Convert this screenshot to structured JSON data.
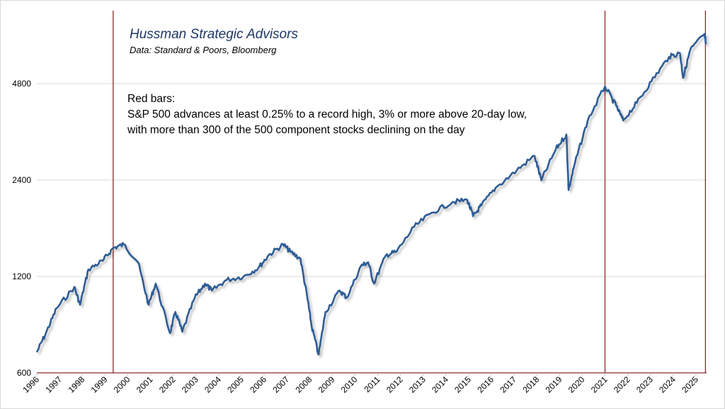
{
  "chart_data": {
    "type": "line",
    "title": "Hussman Strategic Advisors",
    "subtitle": "Data: Standard & Poors, Bloomberg",
    "annotation": [
      "Red bars:",
      "S&P 500 advances at least 0.25% to a record high, 3% or more above 20-day low,",
      "with more than 300 of the 500 component stocks declining on the day"
    ],
    "xlabel": "",
    "ylabel": "",
    "y_scale": "log",
    "ylim": [
      600,
      8100
    ],
    "xlim": [
      1996,
      2025.45
    ],
    "y_ticks": [
      600,
      1200,
      2400,
      4800
    ],
    "x_ticks": [
      "1996",
      "1997",
      "1998",
      "1999",
      "2000",
      "2001",
      "2002",
      "2003",
      "2004",
      "2005",
      "2006",
      "2007",
      "2008",
      "2009",
      "2010",
      "2011",
      "2012",
      "2013",
      "2014",
      "2015",
      "2016",
      "2017",
      "2018",
      "2019",
      "2020",
      "2021",
      "2022",
      "2023",
      "2024",
      "2025"
    ],
    "grid": "horizontal",
    "line_color": "#2f5b94",
    "bar_color": "#8b2a2a",
    "red_bars_x": [
      1999.36,
      2021.0,
      2025.42
    ],
    "series": [
      {
        "x": [
          1996.0,
          1996.4,
          1996.87,
          1997.65,
          1997.9,
          1998.27,
          1998.9,
          1999.36,
          1999.83,
          2000.45,
          2000.92,
          2001.23,
          2001.86,
          2002.1,
          2002.4,
          2002.95,
          2003.4,
          2003.7,
          2004.35,
          2005.1,
          2005.75,
          2006.2,
          2006.84,
          2007.15,
          2007.6,
          2007.93,
          2008.09,
          2008.4,
          2008.7,
          2009.33,
          2009.64,
          2010.27,
          2010.58,
          2010.83,
          2011.36,
          2011.83,
          2012.6,
          2013.38,
          2014.3,
          2014.94,
          2015.2,
          2015.56,
          2016.19,
          2017.12,
          2017.9,
          2018.2,
          2018.84,
          2019.3,
          2019.4,
          2019.68,
          2020.24,
          2021.0,
          2021.5,
          2021.8,
          2022.4,
          2023.04,
          2023.82,
          2024.3,
          2024.44,
          2024.75,
          2025.38,
          2025.44
        ],
        "y": [
          696,
          798,
          954,
          1112,
          979,
          1262,
          1343,
          1472,
          1511,
          1329,
          979,
          1140,
          798,
          930,
          806,
          1030,
          1140,
          1084,
          1170,
          1200,
          1276,
          1398,
          1511,
          1434,
          1363,
          1003,
          840,
          684,
          930,
          1084,
          1030,
          1296,
          1329,
          1140,
          1398,
          1434,
          1714,
          1898,
          2050,
          2080,
          1850,
          2000,
          2270,
          2575,
          2856,
          2394,
          3000,
          3330,
          2235,
          2713,
          3683,
          4704,
          4080,
          3683,
          4180,
          4880,
          5820,
          5975,
          5000,
          6120,
          6860,
          6370
        ]
      }
    ]
  }
}
